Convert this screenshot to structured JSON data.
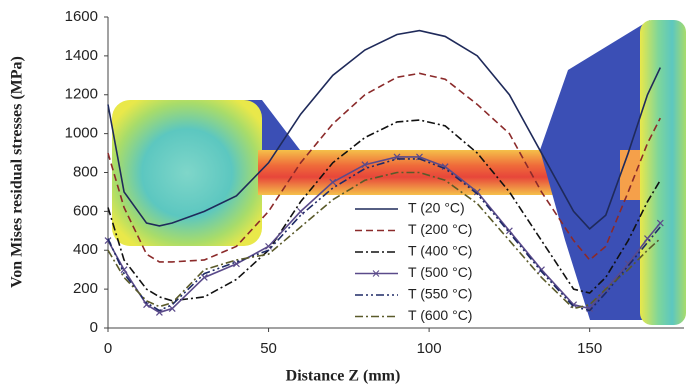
{
  "chart_data": {
    "type": "line",
    "xlabel": "Distance Z  (mm)",
    "ylabel": "Von Mises residual stresses (MPa)",
    "x": [
      0,
      5,
      12,
      16,
      20,
      30,
      40,
      50,
      60,
      70,
      80,
      90,
      97,
      105,
      115,
      125,
      135,
      145,
      150,
      155,
      162,
      168,
      172
    ],
    "series": [
      {
        "name": "T (20 °C)",
        "color": "#1f2a5a",
        "style": "solid",
        "values": [
          1150,
          700,
          540,
          525,
          540,
          600,
          680,
          850,
          1100,
          1300,
          1430,
          1510,
          1530,
          1500,
          1400,
          1200,
          900,
          600,
          510,
          580,
          900,
          1200,
          1340
        ]
      },
      {
        "name": "T (200 °C)",
        "color": "#8b2a2a",
        "style": "dashed",
        "values": [
          900,
          620,
          380,
          340,
          340,
          350,
          420,
          600,
          850,
          1050,
          1200,
          1290,
          1310,
          1280,
          1150,
          1000,
          700,
          450,
          350,
          420,
          700,
          950,
          1080
        ]
      },
      {
        "name": "T (400 °C)",
        "color": "#111111",
        "style": "dashdot",
        "values": [
          620,
          350,
          200,
          160,
          140,
          160,
          250,
          400,
          650,
          850,
          980,
          1060,
          1070,
          1040,
          900,
          700,
          450,
          200,
          180,
          260,
          450,
          650,
          760
        ]
      },
      {
        "name": "T (500 °C)",
        "color": "#5a4a8a",
        "style": "solid",
        "marker": "x",
        "values": [
          450,
          300,
          120,
          80,
          100,
          260,
          330,
          420,
          600,
          750,
          840,
          880,
          880,
          830,
          700,
          500,
          300,
          120,
          100,
          200,
          330,
          460,
          540
        ]
      },
      {
        "name": "T (550 °C)",
        "color": "#1e2a66",
        "style": "dashdotdot",
        "values": [
          460,
          280,
          130,
          90,
          120,
          280,
          340,
          400,
          580,
          720,
          820,
          870,
          870,
          820,
          690,
          490,
          290,
          110,
          90,
          180,
          320,
          440,
          520
        ]
      },
      {
        "name": "T (600 °C)",
        "color": "#5a5a2a",
        "style": "dashdot",
        "values": [
          400,
          260,
          140,
          110,
          130,
          300,
          350,
          380,
          520,
          660,
          760,
          800,
          800,
          760,
          640,
          450,
          260,
          100,
          120,
          200,
          300,
          400,
          460
        ]
      }
    ],
    "xlim": [
      0,
      180
    ],
    "xticks": [
      0,
      50,
      100,
      150
    ],
    "ylim": [
      0,
      1600
    ],
    "yticks": [
      0,
      200,
      400,
      600,
      800,
      1000,
      1200,
      1400,
      1600
    ]
  }
}
